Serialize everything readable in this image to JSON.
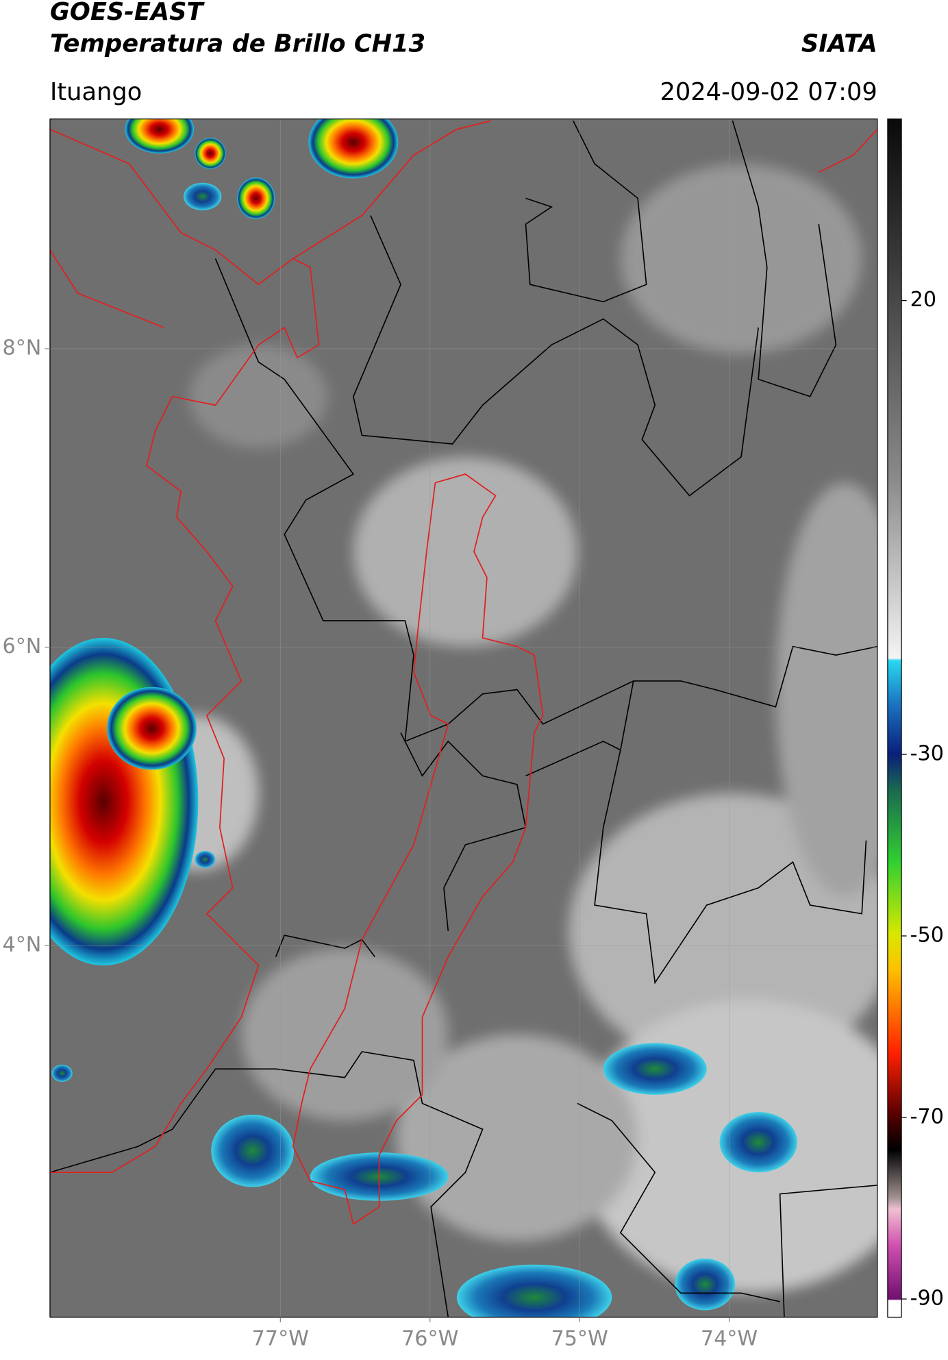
{
  "header": {
    "title": "GOES-EAST",
    "subtitle": "Temperatura de Brillo CH13",
    "source": "SIATA",
    "location": "Ituango",
    "datetime": "2024-09-02 07:09"
  },
  "map": {
    "lat_range": [
      1.51,
      9.54
    ],
    "lon_range": [
      -78.54,
      -73.01
    ],
    "lat_ticks": [
      {
        "value": 8,
        "label": "8°N"
      },
      {
        "value": 6,
        "label": "6°N"
      },
      {
        "value": 4,
        "label": "4°N"
      }
    ],
    "lon_ticks": [
      {
        "value": -77,
        "label": "77°W"
      },
      {
        "value": -76,
        "label": "76°W"
      },
      {
        "value": -75,
        "label": "75°W"
      },
      {
        "value": -74,
        "label": "74°W"
      }
    ],
    "grid": true
  },
  "colorbar": {
    "range": [
      -92,
      40
    ],
    "ticks": [
      20,
      -30,
      -50,
      -70,
      -90
    ]
  }
}
